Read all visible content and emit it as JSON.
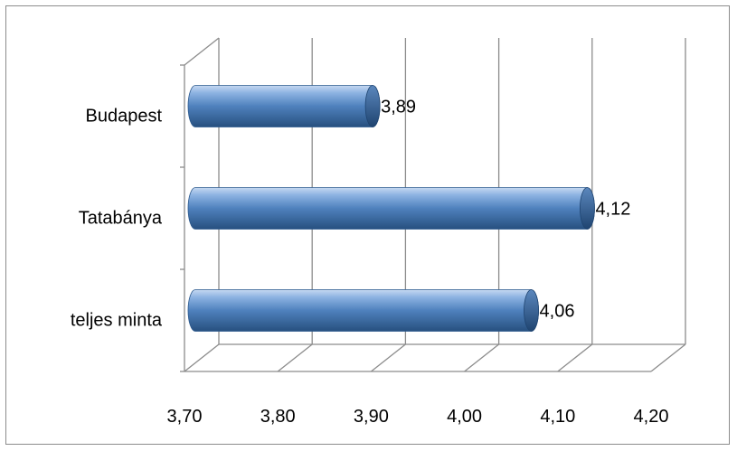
{
  "chart_data": {
    "type": "bar",
    "orientation": "horizontal",
    "style": "3d-cylinder",
    "categories": [
      "Budapest",
      "Tatabánya",
      "teljes minta"
    ],
    "values": [
      3.89,
      4.12,
      4.06
    ],
    "value_labels": [
      "3,89",
      "4,12",
      "4,06"
    ],
    "xlim": [
      3.7,
      4.2
    ],
    "xticks": [
      3.7,
      3.8,
      3.9,
      4.0,
      4.1,
      4.2
    ],
    "xtick_labels": [
      "3,70",
      "3,80",
      "3,90",
      "4,00",
      "4,10",
      "4,20"
    ],
    "title": "",
    "xlabel": "",
    "ylabel": "",
    "grid": true,
    "legend": "none",
    "bar_color": "#4f81bd",
    "bar_dark_color": "#2d5a8e",
    "grid_color": "#8c8c8c"
  }
}
